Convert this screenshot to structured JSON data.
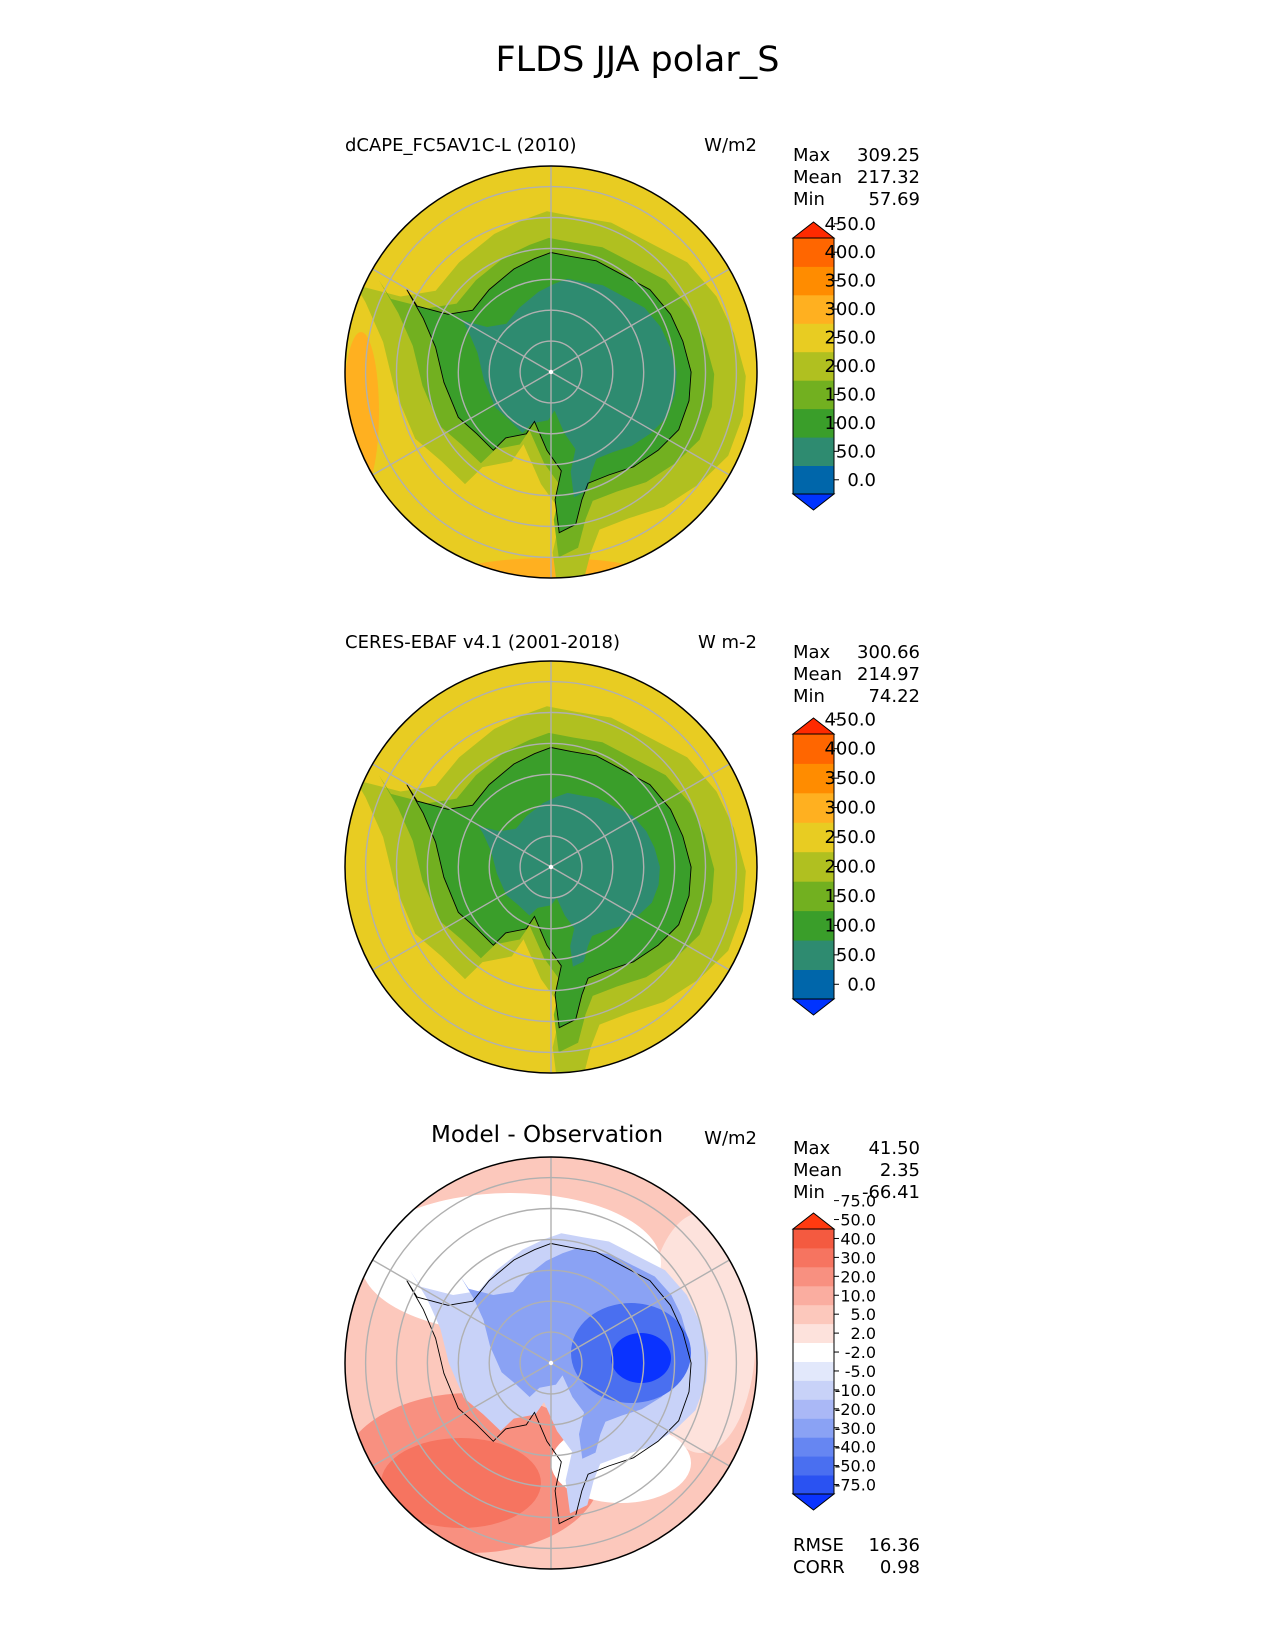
{
  "page_title": "FLDS JJA polar_S",
  "palettes": {
    "abs": [
      "#0033ff",
      "#0066aa",
      "#2e8b70",
      "#3a9e2a",
      "#72b020",
      "#b0c020",
      "#e8cc22",
      "#ffb020",
      "#ff8c00",
      "#ff6600",
      "#ff2a00"
    ],
    "diff": [
      "#0a33ff",
      "#2a52f2",
      "#4a6ff0",
      "#6686f2",
      "#8aa2f4",
      "#aab8f6",
      "#c8d2f8",
      "#e2e8fb",
      "#ffffff",
      "#fde2dc",
      "#fcc8bc",
      "#faada0",
      "#f89080",
      "#f67460",
      "#f45a40",
      "#ff3a10"
    ]
  },
  "panels": [
    {
      "id": "model",
      "title": "dCAPE_FC5AV1C-L (2010)",
      "units": "W/m2",
      "stats": [
        {
          "label": "Max",
          "value": "309.25"
        },
        {
          "label": "Mean",
          "value": "217.32"
        },
        {
          "label": "Min",
          "value": "57.69"
        }
      ],
      "colorbar": {
        "palette": "abs",
        "ticks": [
          "0.0",
          "50.0",
          "100.0",
          "150.0",
          "200.0",
          "250.0",
          "300.0",
          "350.0",
          "400.0",
          "450.0"
        ]
      },
      "map_fill": {
        "outer": 6,
        "ring_far": 5,
        "ring_mid": 4,
        "ring_near": 3,
        "core": 2
      }
    },
    {
      "id": "obs",
      "title": "CERES-EBAF v4.1 (2001-2018)",
      "units": "W m-2",
      "stats": [
        {
          "label": "Max",
          "value": "300.66"
        },
        {
          "label": "Mean",
          "value": "214.97"
        },
        {
          "label": "Min",
          "value": "74.22"
        }
      ],
      "colorbar": {
        "palette": "abs",
        "ticks": [
          "0.0",
          "50.0",
          "100.0",
          "150.0",
          "200.0",
          "250.0",
          "300.0",
          "350.0",
          "400.0",
          "450.0"
        ]
      },
      "map_fill": {
        "outer": 6,
        "ring_far": 5,
        "ring_mid": 4,
        "ring_near": 3,
        "core": 2
      }
    },
    {
      "id": "diff",
      "title": "Model - Observation",
      "units": "W/m2",
      "stats": [
        {
          "label": "Max",
          "value": "41.50"
        },
        {
          "label": "Mean",
          "value": "2.35"
        },
        {
          "label": "Min",
          "value": "-66.41"
        }
      ],
      "colorbar": {
        "palette": "diff",
        "ticks": [
          "-75.0",
          "-50.0",
          "-40.0",
          "-30.0",
          "-20.0",
          "-10.0",
          "-5.0",
          "-2.0",
          "2.0",
          "5.0",
          "10.0",
          "20.0",
          "30.0",
          "40.0",
          "50.0",
          "75.0"
        ]
      }
    }
  ],
  "footer_stats": [
    {
      "label": "RMSE",
      "value": "16.36"
    },
    {
      "label": "CORR",
      "value": "0.98"
    }
  ],
  "chart_data": {
    "type": "heatmap",
    "projection": "south polar stereographic",
    "title": "FLDS JJA polar_S",
    "panels": [
      {
        "name": "dCAPE_FC5AV1C-L (2010)",
        "units": "W/m2",
        "max": 309.25,
        "mean": 217.32,
        "min": 57.69,
        "levels": [
          0,
          50,
          100,
          150,
          200,
          250,
          300,
          350,
          400,
          450
        ]
      },
      {
        "name": "CERES-EBAF v4.1 (2001-2018)",
        "units": "W m-2",
        "max": 300.66,
        "mean": 214.97,
        "min": 74.22,
        "levels": [
          0,
          50,
          100,
          150,
          200,
          250,
          300,
          350,
          400,
          450
        ]
      },
      {
        "name": "Model - Observation",
        "units": "W/m2",
        "max": 41.5,
        "mean": 2.35,
        "min": -66.41,
        "levels": [
          -75,
          -50,
          -40,
          -30,
          -20,
          -10,
          -5,
          -2,
          2,
          5,
          10,
          20,
          30,
          40,
          50,
          75
        ],
        "rmse": 16.36,
        "corr": 0.98
      }
    ]
  }
}
